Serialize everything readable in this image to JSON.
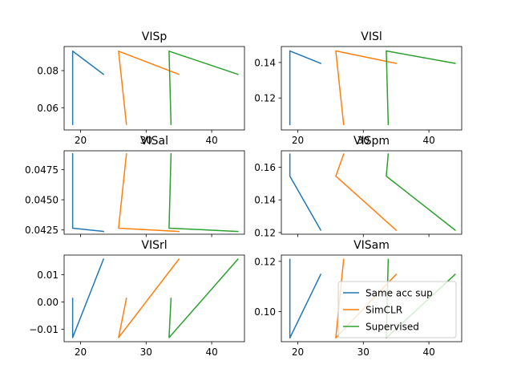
{
  "colors": {
    "Same acc sup": "#1f77b4",
    "SimCLR": "#ff7f0e",
    "Supervised": "#2ca02c"
  },
  "legend": {
    "placement": "lower-right",
    "entries": [
      "Same acc sup",
      "SimCLR",
      "Supervised"
    ]
  },
  "chart_data": [
    {
      "type": "line",
      "title": "VISp",
      "xlim": [
        17.5,
        45
      ],
      "ylim": [
        0.048,
        0.093
      ],
      "xticks": [
        20,
        30,
        40
      ],
      "xtick_labels": [
        "20",
        "30",
        "40"
      ],
      "yticks": [
        0.06,
        0.08
      ],
      "ytick_labels": [
        "0.06",
        "0.08"
      ],
      "show_xticklabels": true,
      "series": [
        {
          "name": "Same acc sup",
          "x": [
            18.8,
            18.8,
            23.5
          ],
          "y": [
            0.051,
            0.0905,
            0.078
          ]
        },
        {
          "name": "SimCLR",
          "x": [
            27.0,
            25.8,
            35.0
          ],
          "y": [
            0.051,
            0.0905,
            0.078
          ]
        },
        {
          "name": "Supervised",
          "x": [
            33.8,
            33.5,
            44.0
          ],
          "y": [
            0.051,
            0.0905,
            0.078
          ]
        }
      ]
    },
    {
      "type": "line",
      "title": "VISl",
      "xlim": [
        17.5,
        45
      ],
      "ylim": [
        0.102,
        0.149
      ],
      "xticks": [
        20,
        30,
        40
      ],
      "xtick_labels": [
        "20",
        "30",
        "40"
      ],
      "yticks": [
        0.12,
        0.14
      ],
      "ytick_labels": [
        "0.12",
        "0.14"
      ],
      "show_xticklabels": true,
      "series": [
        {
          "name": "Same acc sup",
          "x": [
            18.8,
            18.8,
            23.5
          ],
          "y": [
            0.105,
            0.1465,
            0.1395
          ]
        },
        {
          "name": "SimCLR",
          "x": [
            27.0,
            25.8,
            35.0
          ],
          "y": [
            0.105,
            0.1465,
            0.1395
          ]
        },
        {
          "name": "Supervised",
          "x": [
            33.8,
            33.5,
            44.0
          ],
          "y": [
            0.105,
            0.1465,
            0.1395
          ]
        }
      ]
    },
    {
      "type": "line",
      "title": "VISal",
      "xlim": [
        17.5,
        45
      ],
      "ylim": [
        0.04215,
        0.04905
      ],
      "xticks": [
        20,
        30,
        40
      ],
      "xtick_labels": [
        "20",
        "30",
        "40"
      ],
      "yticks": [
        0.0425,
        0.045,
        0.0475
      ],
      "ytick_labels": [
        "0.0425",
        "0.0450",
        "0.0475"
      ],
      "show_xticklabels": false,
      "series": [
        {
          "name": "Same acc sup",
          "x": [
            18.8,
            18.8,
            23.5
          ],
          "y": [
            0.0488,
            0.04265,
            0.04238
          ]
        },
        {
          "name": "SimCLR",
          "x": [
            27.0,
            25.8,
            35.0
          ],
          "y": [
            0.0488,
            0.04265,
            0.04238
          ]
        },
        {
          "name": "Supervised",
          "x": [
            33.8,
            33.5,
            44.0
          ],
          "y": [
            0.0488,
            0.04265,
            0.04238
          ]
        }
      ]
    },
    {
      "type": "line",
      "title": "VISpm",
      "xlim": [
        17.5,
        45
      ],
      "ylim": [
        0.119,
        0.17
      ],
      "xticks": [
        20,
        30,
        40
      ],
      "xtick_labels": [
        "20",
        "30",
        "40"
      ],
      "yticks": [
        0.12,
        0.14,
        0.16
      ],
      "ytick_labels": [
        "0.12",
        "0.14",
        "0.16"
      ],
      "show_xticklabels": false,
      "series": [
        {
          "name": "Same acc sup",
          "x": [
            18.8,
            18.8,
            23.5
          ],
          "y": [
            0.168,
            0.1545,
            0.1215
          ]
        },
        {
          "name": "SimCLR",
          "x": [
            27.0,
            25.8,
            35.0
          ],
          "y": [
            0.168,
            0.1545,
            0.1215
          ]
        },
        {
          "name": "Supervised",
          "x": [
            33.8,
            33.5,
            44.0
          ],
          "y": [
            0.168,
            0.1545,
            0.1215
          ]
        }
      ]
    },
    {
      "type": "line",
      "title": "VISrl",
      "xlim": [
        17.5,
        45
      ],
      "ylim": [
        -0.0146,
        0.0172
      ],
      "xticks": [
        20,
        30,
        40
      ],
      "xtick_labels": [
        "20",
        "30",
        "40"
      ],
      "yticks": [
        -0.01,
        0.0,
        0.01
      ],
      "ytick_labels": [
        "−0.01",
        "0.00",
        "0.01"
      ],
      "show_xticklabels": true,
      "series": [
        {
          "name": "Same acc sup",
          "x": [
            18.8,
            18.8,
            23.5
          ],
          "y": [
            0.0013,
            -0.0131,
            0.0157
          ]
        },
        {
          "name": "SimCLR",
          "x": [
            27.0,
            25.8,
            35.0
          ],
          "y": [
            0.0013,
            -0.0131,
            0.0157
          ]
        },
        {
          "name": "Supervised",
          "x": [
            33.8,
            33.5,
            44.0
          ],
          "y": [
            0.0013,
            -0.0131,
            0.0157
          ]
        }
      ]
    },
    {
      "type": "line",
      "title": "VISam",
      "xlim": [
        17.5,
        45
      ],
      "ylim": [
        0.088,
        0.1225
      ],
      "xticks": [
        20,
        30,
        40
      ],
      "xtick_labels": [
        "20",
        "30",
        "40"
      ],
      "yticks": [
        0.1,
        0.12
      ],
      "ytick_labels": [
        "0.10",
        "0.12"
      ],
      "show_xticklabels": true,
      "series": [
        {
          "name": "Same acc sup",
          "x": [
            18.8,
            18.8,
            23.5
          ],
          "y": [
            0.1208,
            0.0895,
            0.1148
          ]
        },
        {
          "name": "SimCLR",
          "x": [
            27.0,
            25.8,
            35.0
          ],
          "y": [
            0.1208,
            0.0895,
            0.1148
          ]
        },
        {
          "name": "Supervised",
          "x": [
            33.8,
            33.5,
            44.0
          ],
          "y": [
            0.1208,
            0.0895,
            0.1148
          ]
        }
      ]
    }
  ]
}
